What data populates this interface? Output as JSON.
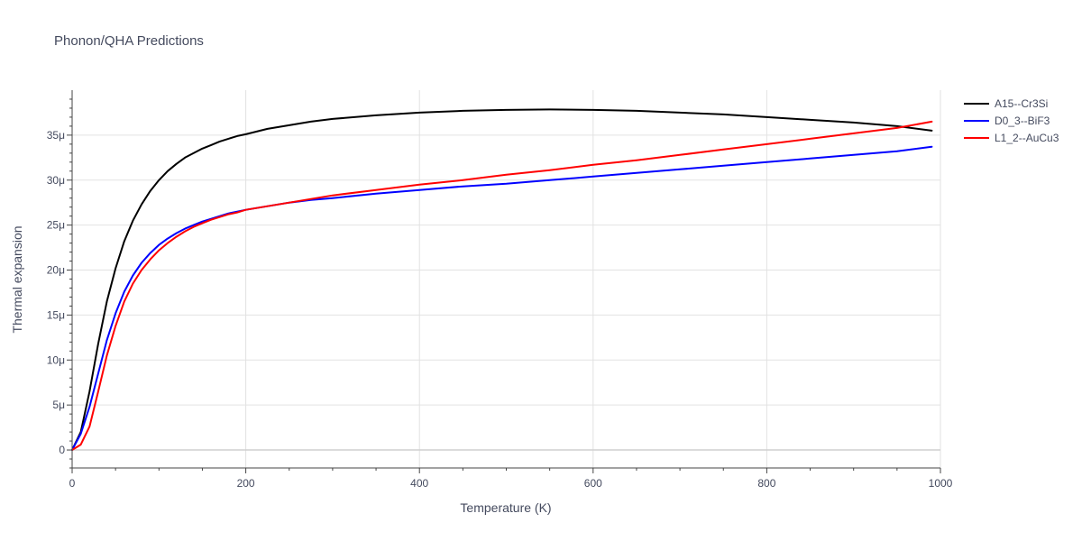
{
  "chart_data": {
    "type": "line",
    "title": "Phonon/QHA Predictions",
    "xlabel": "Temperature (K)",
    "ylabel": "Thermal expansion",
    "xlim": [
      0,
      1000
    ],
    "ylim": [
      -2,
      40
    ],
    "x_ticks": [
      0,
      200,
      400,
      600,
      800,
      1000
    ],
    "x_tick_labels": [
      "0",
      "200",
      "400",
      "600",
      "800",
      "1000"
    ],
    "y_ticks": [
      0,
      5,
      10,
      15,
      20,
      25,
      30,
      35
    ],
    "y_tick_labels": [
      "0",
      "5μ",
      "10μ",
      "15μ",
      "20μ",
      "25μ",
      "30μ",
      "35μ"
    ],
    "grid": true,
    "legend_position": "top-right",
    "series": [
      {
        "name": "A15--Cr3Si",
        "color": "#000000",
        "x": [
          0,
          10,
          20,
          30,
          40,
          50,
          60,
          70,
          80,
          90,
          100,
          110,
          120,
          130,
          140,
          150,
          160,
          170,
          180,
          190,
          200,
          225,
          250,
          275,
          300,
          350,
          400,
          450,
          500,
          550,
          600,
          650,
          700,
          750,
          800,
          850,
          900,
          950,
          990
        ],
        "y": [
          0,
          2.0,
          6.5,
          11.8,
          16.5,
          20.2,
          23.2,
          25.5,
          27.3,
          28.8,
          30.0,
          31.0,
          31.8,
          32.5,
          33.0,
          33.5,
          33.9,
          34.3,
          34.6,
          34.9,
          35.1,
          35.7,
          36.1,
          36.5,
          36.8,
          37.2,
          37.5,
          37.7,
          37.8,
          37.85,
          37.8,
          37.7,
          37.5,
          37.3,
          37.0,
          36.7,
          36.4,
          36.0,
          35.5
        ]
      },
      {
        "name": "D0_3--BiF3",
        "color": "#0000ff",
        "x": [
          0,
          10,
          20,
          30,
          40,
          50,
          60,
          70,
          80,
          90,
          100,
          110,
          120,
          130,
          140,
          150,
          160,
          170,
          180,
          190,
          200,
          225,
          250,
          275,
          300,
          350,
          400,
          450,
          500,
          550,
          600,
          650,
          700,
          750,
          800,
          850,
          900,
          950,
          990
        ],
        "y": [
          0,
          1.8,
          4.8,
          8.5,
          12.2,
          15.2,
          17.6,
          19.4,
          20.8,
          21.9,
          22.8,
          23.5,
          24.1,
          24.6,
          25.0,
          25.4,
          25.7,
          26.0,
          26.3,
          26.5,
          26.7,
          27.1,
          27.5,
          27.8,
          28.0,
          28.5,
          28.9,
          29.3,
          29.6,
          30.0,
          30.4,
          30.8,
          31.2,
          31.6,
          32.0,
          32.4,
          32.8,
          33.2,
          33.7
        ]
      },
      {
        "name": "L1_2--AuCu3",
        "color": "#ff0000",
        "x": [
          0,
          10,
          20,
          30,
          40,
          50,
          60,
          70,
          80,
          90,
          100,
          110,
          120,
          130,
          140,
          150,
          160,
          170,
          180,
          190,
          200,
          225,
          250,
          275,
          300,
          350,
          400,
          450,
          500,
          550,
          600,
          650,
          700,
          750,
          800,
          850,
          900,
          950,
          990
        ],
        "y": [
          0,
          0.6,
          2.6,
          6.5,
          10.5,
          13.8,
          16.5,
          18.5,
          20.0,
          21.2,
          22.2,
          23.0,
          23.7,
          24.3,
          24.8,
          25.2,
          25.6,
          25.9,
          26.2,
          26.4,
          26.7,
          27.1,
          27.5,
          27.9,
          28.3,
          28.9,
          29.5,
          30.0,
          30.6,
          31.1,
          31.7,
          32.2,
          32.8,
          33.4,
          34.0,
          34.6,
          35.2,
          35.8,
          36.5
        ]
      }
    ]
  }
}
